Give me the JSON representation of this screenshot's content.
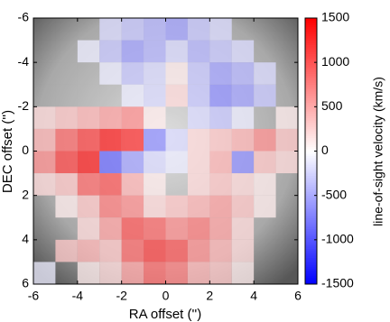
{
  "chart_data": {
    "type": "heatmap",
    "xlabel": "RA offset ('')",
    "ylabel": "DEC offset ('')",
    "colorbar_label": "line-of-sight velocity (km/s)",
    "xlim": [
      -6,
      6
    ],
    "xticks": [
      -6,
      -4,
      -2,
      0,
      2,
      4,
      6
    ],
    "ylim": [
      -6,
      6
    ],
    "yticks": [
      -6,
      -4,
      -2,
      0,
      2,
      4,
      6
    ],
    "y_direction": "reverse",
    "clim": [
      -1500,
      1500
    ],
    "cticks": [
      -1500,
      -1000,
      -500,
      0,
      500,
      1000,
      1500
    ],
    "colormap": [
      "#0000ff",
      "#ffffff",
      "#ff0000"
    ],
    "z": [
      [
        0,
        0,
        0,
        -200,
        -300,
        -400,
        -500,
        -300,
        -200,
        0,
        0,
        0
      ],
      [
        0,
        0,
        -100,
        -300,
        -500,
        -400,
        -200,
        -400,
        -300,
        -200,
        0,
        0
      ],
      [
        0,
        0,
        0,
        -100,
        -300,
        -200,
        100,
        -300,
        -500,
        -400,
        -200,
        0
      ],
      [
        0,
        0,
        0,
        0,
        -100,
        -200,
        200,
        -300,
        -600,
        -500,
        -300,
        0
      ],
      [
        200,
        300,
        400,
        500,
        600,
        100,
        0,
        -200,
        -300,
        -100,
        0,
        100
      ],
      [
        400,
        800,
        1000,
        1200,
        1100,
        -600,
        -200,
        200,
        300,
        400,
        600,
        300
      ],
      [
        600,
        1000,
        1200,
        -800,
        -500,
        -200,
        -100,
        200,
        400,
        -600,
        300,
        200
      ],
      [
        200,
        300,
        800,
        900,
        400,
        100,
        0,
        200,
        300,
        200,
        100,
        0
      ],
      [
        0,
        100,
        300,
        700,
        600,
        200,
        300,
        400,
        500,
        300,
        100,
        0
      ],
      [
        0,
        0,
        200,
        500,
        900,
        800,
        600,
        700,
        500,
        200,
        0,
        0
      ],
      [
        0,
        300,
        400,
        300,
        800,
        1000,
        900,
        600,
        400,
        200,
        0,
        0
      ],
      [
        -100,
        0,
        100,
        200,
        500,
        800,
        700,
        400,
        300,
        100,
        0,
        0
      ]
    ]
  }
}
